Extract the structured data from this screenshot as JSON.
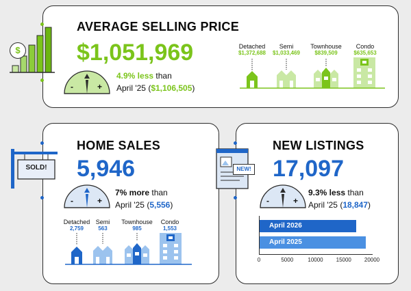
{
  "avg_price": {
    "title": "AVERAGE SELLING PRICE",
    "value": "$1,051,969",
    "change_bold": "4.9% less",
    "change_rest": " than",
    "prev_period": "April '25 (",
    "prev_value": "$1,106,505",
    "prev_close": ")",
    "types": [
      {
        "label": "Detached",
        "value": "$1,372,688"
      },
      {
        "label": "Semi",
        "value": "$1,033,469"
      },
      {
        "label": "Townhouse",
        "value": "$839,509"
      },
      {
        "label": "Condo",
        "value": "$635,653"
      }
    ]
  },
  "home_sales": {
    "title": "HOME SALES",
    "value": "5,946",
    "change_bold": "7% more",
    "change_rest": " than",
    "prev_period": "April '25 (",
    "prev_value": "5,556",
    "prev_close": ")",
    "sign_text": "SOLD!",
    "types": [
      {
        "label": "Detached",
        "value": "2,759"
      },
      {
        "label": "Semi",
        "value": "563"
      },
      {
        "label": "Townhouse",
        "value": "985"
      },
      {
        "label": "Condo",
        "value": "1,553"
      }
    ]
  },
  "new_listings": {
    "title": "NEW LISTINGS",
    "value": "17,097",
    "change_bold": "9.3% less",
    "change_rest": " than",
    "prev_period": "April '25 (",
    "prev_value": "18,847",
    "prev_close": ")",
    "doc_badge": "NEW!",
    "chart_data": {
      "type": "bar",
      "orientation": "horizontal",
      "categories": [
        "April 2026",
        "April 2025"
      ],
      "values": [
        17097,
        18847
      ],
      "xlim": [
        0,
        20000
      ],
      "xticks": [
        "0",
        "5000",
        "10000",
        "15000",
        "20000"
      ],
      "colors": [
        "#1f66c8",
        "#4a90e2"
      ]
    }
  },
  "gauge_minus": "-",
  "gauge_plus": "+",
  "colors": {
    "green": "#7bc41b",
    "light_green": "#c9e8a4",
    "blue": "#1f66c8",
    "light_blue": "#9cc3ee",
    "border": "#2b2b2b"
  }
}
